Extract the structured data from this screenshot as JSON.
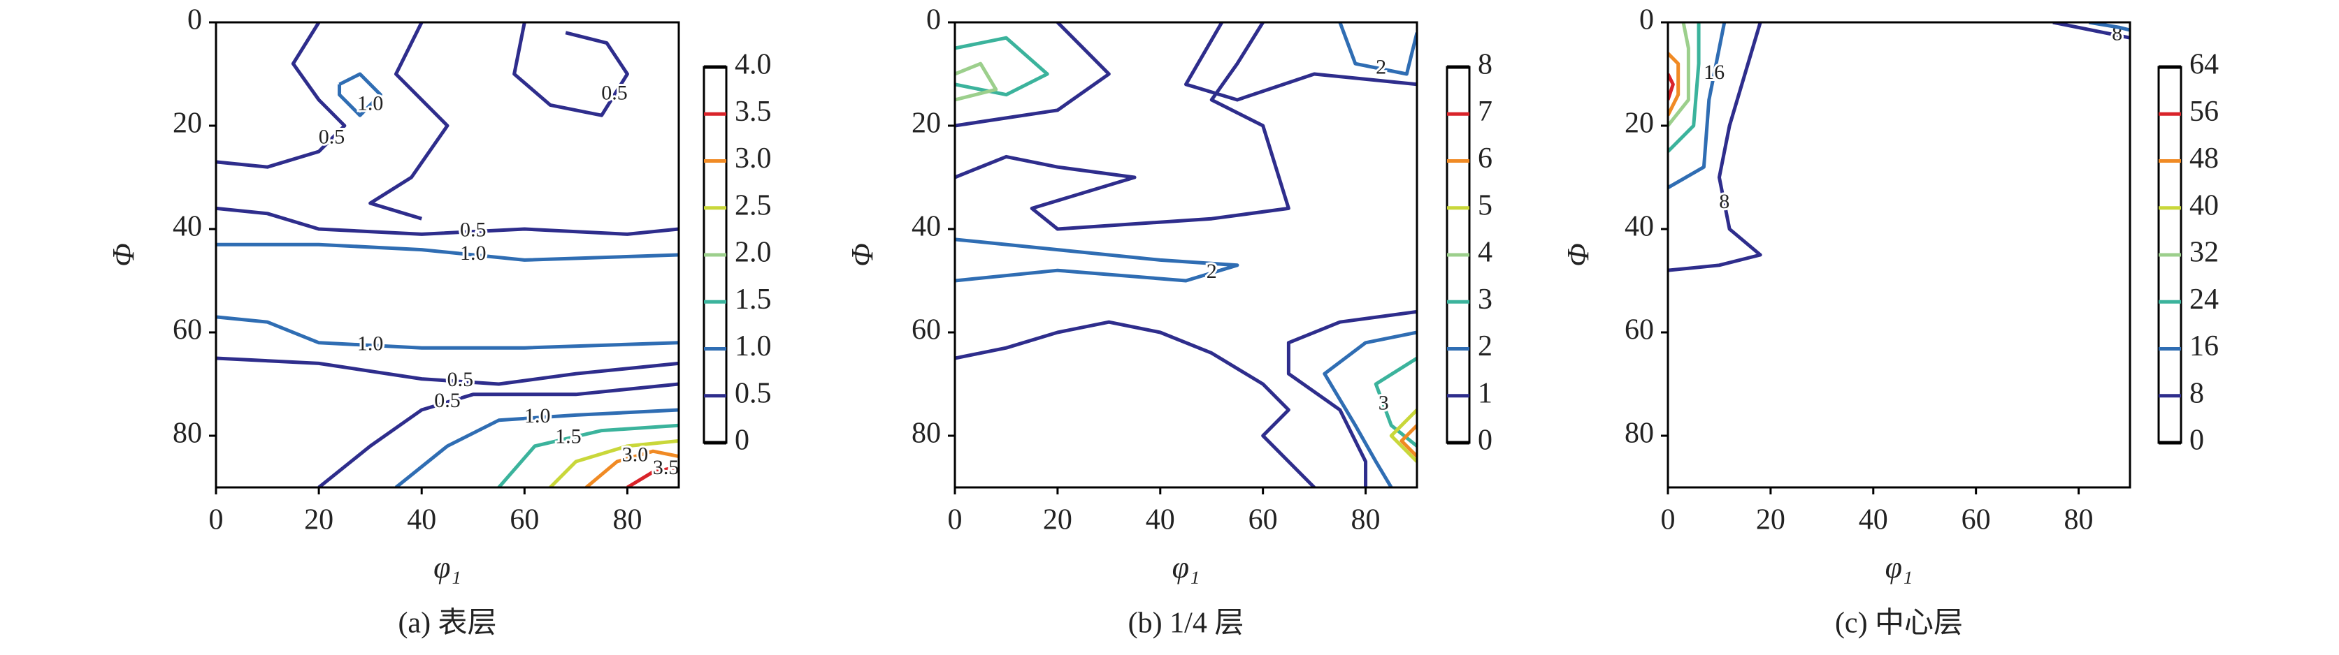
{
  "charts": [
    {
      "type": "contour",
      "caption": "(a) 表层",
      "xlabel": "φ₁",
      "ylabel": "Φ",
      "xlim": [
        0,
        90
      ],
      "ylim": [
        0,
        90
      ],
      "xticks": [
        0,
        20,
        40,
        60,
        80
      ],
      "yticks": [
        0,
        20,
        40,
        60,
        80
      ],
      "colorbar_ticks": [
        0,
        0.5,
        {
          "value": 1,
          "label": "1.0"
        },
        1.5,
        {
          "value": 2,
          "label": "2.0"
        },
        2.5,
        {
          "value": 3,
          "label": "3.0"
        },
        3.5,
        {
          "value": 4,
          "label": "4.0"
        }
      ],
      "colorbar_colors": [
        "#000000",
        "#2e2d8c",
        "#2f6db3",
        "#3bb39c",
        "#9ccf8c",
        "#c9d73a",
        "#f08a24",
        "#d9232a",
        "#000000"
      ],
      "contours": [
        {
          "level": 0.5,
          "label": "0.5",
          "x": [
            0,
            10,
            20,
            40,
            60,
            80,
            90
          ],
          "y": [
            36,
            37,
            40,
            41,
            40,
            41,
            40
          ]
        },
        {
          "level": 1,
          "label": "1.0",
          "x": [
            0,
            20,
            40,
            60,
            90
          ],
          "y": [
            43,
            43,
            44,
            46,
            45
          ]
        },
        {
          "level": 1,
          "label": "1.0",
          "x": [
            0,
            10,
            20,
            40,
            60,
            90
          ],
          "y": [
            57,
            58,
            62,
            63,
            63,
            62
          ]
        },
        {
          "level": 0.5,
          "label": "0.5",
          "x": [
            0,
            20,
            40,
            55,
            70,
            90
          ],
          "y": [
            65,
            66,
            69,
            70,
            68,
            66
          ]
        },
        {
          "level": 0.5,
          "label": "0.5",
          "x": [
            20,
            15,
            20,
            25,
            20,
            10,
            0
          ],
          "y": [
            0,
            8,
            15,
            20,
            25,
            28,
            27
          ]
        },
        {
          "level": 0.5,
          "x": [
            40,
            35,
            45,
            38,
            30,
            40
          ],
          "y": [
            0,
            10,
            20,
            30,
            35,
            38
          ]
        },
        {
          "level": 0.5,
          "label": "0.5",
          "x": [
            60,
            58,
            65,
            75,
            80,
            76,
            68
          ],
          "y": [
            0,
            10,
            16,
            18,
            10,
            4,
            2
          ]
        },
        {
          "level": 1,
          "label": "1.0",
          "x": [
            24,
            28,
            32,
            28,
            24,
            24
          ],
          "y": [
            12,
            10,
            14,
            18,
            14,
            12
          ]
        },
        {
          "level": 0.5,
          "label": "0.5",
          "x": [
            20,
            30,
            40,
            50,
            70,
            90
          ],
          "y": [
            90,
            82,
            75,
            72,
            72,
            70
          ]
        },
        {
          "level": 1,
          "label": "1.0",
          "x": [
            35,
            45,
            55,
            70,
            90
          ],
          "y": [
            90,
            82,
            77,
            76,
            75
          ]
        },
        {
          "level": 1.5,
          "label": "1.5",
          "x": [
            55,
            62,
            75,
            90
          ],
          "y": [
            90,
            82,
            79,
            78
          ]
        },
        {
          "level": 2.5,
          "x": [
            65,
            70,
            80,
            90
          ],
          "y": [
            90,
            85,
            82,
            81
          ]
        },
        {
          "level": 3,
          "label": "3.0",
          "x": [
            72,
            78,
            85,
            90
          ],
          "y": [
            90,
            85,
            83,
            84
          ]
        },
        {
          "level": 3.5,
          "label": "3.5",
          "x": [
            80,
            85,
            90
          ],
          "y": [
            90,
            87,
            86
          ]
        }
      ]
    },
    {
      "type": "contour",
      "caption": "(b) 1/4 层",
      "xlabel": "φ₁",
      "ylabel": "Φ",
      "xlim": [
        0,
        90
      ],
      "ylim": [
        0,
        90
      ],
      "xticks": [
        0,
        20,
        40,
        60,
        80
      ],
      "yticks": [
        0,
        20,
        40,
        60,
        80
      ],
      "colorbar_ticks": [
        0,
        1,
        2,
        3,
        4,
        5,
        6,
        7,
        8
      ],
      "colorbar_colors": [
        "#000000",
        "#2e2d8c",
        "#2f6db3",
        "#3bb39c",
        "#9ccf8c",
        "#c9d73a",
        "#f08a24",
        "#d9232a",
        "#000000"
      ],
      "contours": [
        {
          "level": 1,
          "x": [
            0,
            20,
            30,
            20
          ],
          "y": [
            20,
            17,
            10,
            0
          ]
        },
        {
          "level": 3,
          "x": [
            0,
            10,
            18,
            10,
            0
          ],
          "y": [
            12,
            14,
            10,
            3,
            5
          ]
        },
        {
          "level": 4,
          "x": [
            0,
            8,
            5,
            0
          ],
          "y": [
            15,
            13,
            8,
            10
          ]
        },
        {
          "level": 1,
          "x": [
            0,
            10,
            20,
            35,
            15,
            20,
            50,
            65,
            60,
            50,
            55,
            60
          ],
          "y": [
            30,
            26,
            28,
            30,
            36,
            40,
            38,
            36,
            20,
            15,
            8,
            0
          ]
        },
        {
          "level": 2,
          "label": "2",
          "x": [
            0,
            20,
            40,
            55,
            45,
            20,
            0
          ],
          "y": [
            42,
            44,
            46,
            47,
            50,
            48,
            50
          ]
        },
        {
          "level": 1,
          "x": [
            0,
            10,
            20,
            30,
            40,
            50,
            60,
            65,
            60,
            65,
            70
          ],
          "y": [
            65,
            63,
            60,
            58,
            60,
            64,
            70,
            75,
            80,
            85,
            90
          ]
        },
        {
          "level": 1,
          "x": [
            52,
            45,
            55,
            70,
            90
          ],
          "y": [
            0,
            12,
            15,
            10,
            12
          ]
        },
        {
          "level": 2,
          "label": "2",
          "x": [
            75,
            78,
            88,
            90
          ],
          "y": [
            0,
            8,
            10,
            2
          ]
        },
        {
          "level": 1,
          "x": [
            90,
            75,
            65,
            65,
            75,
            80,
            80
          ],
          "y": [
            56,
            58,
            62,
            68,
            75,
            85,
            90
          ]
        },
        {
          "level": 2,
          "x": [
            90,
            80,
            72,
            78,
            82,
            85
          ],
          "y": [
            60,
            62,
            68,
            78,
            85,
            90
          ]
        },
        {
          "level": 3,
          "label": "3",
          "x": [
            90,
            82,
            85,
            90
          ],
          "y": [
            65,
            70,
            78,
            82
          ]
        },
        {
          "level": 5,
          "x": [
            90,
            85,
            90
          ],
          "y": [
            75,
            80,
            85
          ]
        },
        {
          "level": 6,
          "x": [
            90,
            87,
            90
          ],
          "y": [
            78,
            81,
            84
          ]
        }
      ]
    },
    {
      "type": "contour",
      "caption": "(c) 中心层",
      "xlabel": "φ₁",
      "ylabel": "Φ",
      "xlim": [
        0,
        90
      ],
      "ylim": [
        0,
        90
      ],
      "xticks": [
        0,
        20,
        40,
        60,
        80
      ],
      "yticks": [
        0,
        20,
        40,
        60,
        80
      ],
      "colorbar_ticks": [
        0,
        8,
        16,
        24,
        32,
        40,
        48,
        56,
        64
      ],
      "colorbar_colors": [
        "#000000",
        "#2e2d8c",
        "#2f6db3",
        "#3bb39c",
        "#9ccf8c",
        "#c9d73a",
        "#f08a24",
        "#d9232a",
        "#000000"
      ],
      "contours": [
        {
          "level": 8,
          "label": "8",
          "x": [
            0,
            10,
            18,
            12,
            10,
            12,
            15,
            18
          ],
          "y": [
            48,
            47,
            45,
            40,
            30,
            20,
            10,
            0
          ]
        },
        {
          "level": 16,
          "label": "16",
          "x": [
            0,
            7,
            8,
            10,
            11
          ],
          "y": [
            32,
            28,
            15,
            5,
            0
          ]
        },
        {
          "level": 24,
          "x": [
            0,
            5,
            6,
            6
          ],
          "y": [
            25,
            20,
            8,
            0
          ]
        },
        {
          "level": 32,
          "x": [
            0,
            4,
            4,
            3
          ],
          "y": [
            20,
            15,
            5,
            0
          ]
        },
        {
          "level": 48,
          "x": [
            0,
            2,
            2,
            0
          ],
          "y": [
            18,
            14,
            8,
            6
          ]
        },
        {
          "level": 56,
          "x": [
            0,
            1,
            0
          ],
          "y": [
            15,
            12,
            10
          ]
        },
        {
          "level": 8,
          "label": "8",
          "x": [
            75,
            85,
            90
          ],
          "y": [
            0,
            2,
            3
          ]
        },
        {
          "level": 16,
          "x": [
            82,
            88,
            90
          ],
          "y": [
            0,
            1,
            1.5
          ]
        }
      ]
    }
  ]
}
